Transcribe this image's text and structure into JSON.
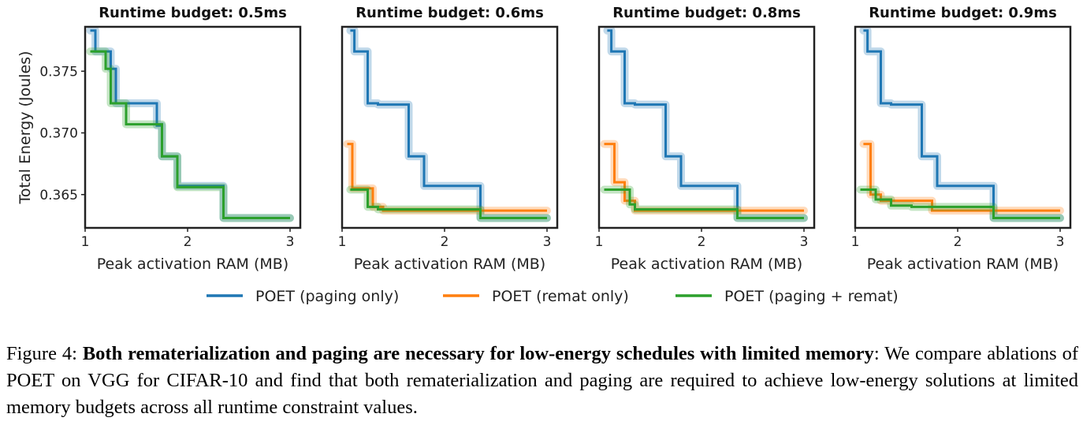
{
  "colors": {
    "paging_only": "#1f77b4",
    "remat_only": "#ff7f0e",
    "paging_remat": "#2ca02c"
  },
  "legend": [
    {
      "key": "paging_only",
      "label": "POET (paging only)"
    },
    {
      "key": "remat_only",
      "label": "POET (remat only)"
    },
    {
      "key": "paging_remat",
      "label": "POET (paging + remat)"
    }
  ],
  "caption": {
    "prefix": "Figure 4: ",
    "bold": "Both rematerialization and paging are necessary for low-energy schedules with limited memory",
    "rest": ": We compare ablations of POET on VGG for CIFAR-10 and find that both rematerialization and paging are required to achieve low-energy solutions at limited memory budgets across all runtime constraint values."
  },
  "chart_data": [
    {
      "type": "line",
      "title": "Runtime budget: 0.5ms",
      "xlabel": "Peak activation RAM (MB)",
      "ylabel": "Total Energy (Joules)",
      "xlim": [
        1.0,
        3.1
      ],
      "ylim": [
        0.3623,
        0.3786
      ],
      "xticks": [
        "1",
        "2",
        "3"
      ],
      "yticks": [
        "0.365",
        "0.370",
        "0.375"
      ],
      "series": [
        {
          "name": "POET (paging only)",
          "key": "paging_only",
          "x": [
            1.05,
            1.1,
            1.1,
            1.25,
            1.25,
            1.3,
            1.3,
            1.7,
            1.7,
            1.75,
            1.75,
            1.9,
            1.9,
            2.35,
            2.35,
            3.0
          ],
          "y": [
            0.3783,
            0.3783,
            0.3766,
            0.3766,
            0.3752,
            0.3752,
            0.3724,
            0.3724,
            0.3706,
            0.3706,
            0.3681,
            0.3681,
            0.3657,
            0.3657,
            0.3631,
            0.3631
          ]
        },
        {
          "name": "POET (remat only)",
          "key": "remat_only",
          "x": [],
          "y": []
        },
        {
          "name": "POET (paging + remat)",
          "key": "paging_remat",
          "x": [
            1.05,
            1.2,
            1.2,
            1.25,
            1.25,
            1.4,
            1.4,
            1.75,
            1.75,
            1.9,
            1.9,
            2.35,
            2.35,
            3.0
          ],
          "y": [
            0.3766,
            0.3766,
            0.3752,
            0.3752,
            0.3724,
            0.3724,
            0.3707,
            0.3707,
            0.3681,
            0.3681,
            0.3656,
            0.3656,
            0.3631,
            0.3631
          ]
        }
      ]
    },
    {
      "type": "line",
      "title": "Runtime budget: 0.6ms",
      "xlabel": "Peak activation RAM (MB)",
      "xlim": [
        1.0,
        3.1
      ],
      "ylim": [
        0.3623,
        0.3786
      ],
      "xticks": [
        "1",
        "2",
        "3"
      ],
      "series": [
        {
          "name": "POET (paging only)",
          "key": "paging_only",
          "x": [
            1.08,
            1.12,
            1.12,
            1.25,
            1.25,
            1.35,
            1.35,
            1.65,
            1.65,
            1.8,
            1.8,
            2.35,
            2.35,
            3.0
          ],
          "y": [
            0.3783,
            0.3783,
            0.3766,
            0.3766,
            0.3724,
            0.3724,
            0.3723,
            0.3723,
            0.3681,
            0.3681,
            0.3657,
            0.3657,
            0.3631,
            0.3631
          ]
        },
        {
          "name": "POET (remat only)",
          "key": "remat_only",
          "x": [
            1.05,
            1.1,
            1.1,
            1.3,
            1.3,
            1.4,
            1.4,
            2.1,
            2.1,
            3.0
          ],
          "y": [
            0.3691,
            0.3691,
            0.3655,
            0.3655,
            0.364,
            0.364,
            0.3637,
            0.3637,
            0.3637,
            0.3637
          ]
        },
        {
          "name": "POET (paging + remat)",
          "key": "paging_remat",
          "x": [
            1.08,
            1.25,
            1.25,
            1.35,
            1.35,
            2.35,
            2.35,
            3.0
          ],
          "y": [
            0.3654,
            0.3654,
            0.364,
            0.364,
            0.3638,
            0.3638,
            0.3631,
            0.3631
          ]
        }
      ]
    },
    {
      "type": "line",
      "title": "Runtime budget: 0.8ms",
      "xlabel": "Peak activation RAM (MB)",
      "xlim": [
        1.0,
        3.1
      ],
      "ylim": [
        0.3623,
        0.3786
      ],
      "xticks": [
        "1",
        "2",
        "3"
      ],
      "series": [
        {
          "name": "POET (paging only)",
          "key": "paging_only",
          "x": [
            1.08,
            1.12,
            1.12,
            1.25,
            1.25,
            1.35,
            1.35,
            1.65,
            1.65,
            1.8,
            1.8,
            2.35,
            2.35,
            3.0
          ],
          "y": [
            0.3783,
            0.3783,
            0.3766,
            0.3766,
            0.3724,
            0.3724,
            0.3723,
            0.3723,
            0.3681,
            0.3681,
            0.3657,
            0.3657,
            0.3631,
            0.3631
          ]
        },
        {
          "name": "POET (remat only)",
          "key": "remat_only",
          "x": [
            1.05,
            1.15,
            1.15,
            1.25,
            1.25,
            1.35,
            1.35,
            2.1,
            2.1,
            3.0
          ],
          "y": [
            0.3691,
            0.3691,
            0.366,
            0.366,
            0.3645,
            0.3645,
            0.3637,
            0.3637,
            0.3637,
            0.3637
          ]
        },
        {
          "name": "POET (paging + remat)",
          "key": "paging_remat",
          "x": [
            1.05,
            1.3,
            1.3,
            1.35,
            1.35,
            2.35,
            2.35,
            3.0
          ],
          "y": [
            0.3654,
            0.3654,
            0.3642,
            0.3642,
            0.3638,
            0.3638,
            0.3631,
            0.3631
          ]
        }
      ]
    },
    {
      "type": "line",
      "title": "Runtime budget: 0.9ms",
      "xlabel": "Peak activation RAM (MB)",
      "xlim": [
        1.0,
        3.1
      ],
      "ylim": [
        0.3623,
        0.3786
      ],
      "xticks": [
        "1",
        "2",
        "3"
      ],
      "series": [
        {
          "name": "POET (paging only)",
          "key": "paging_only",
          "x": [
            1.08,
            1.12,
            1.12,
            1.25,
            1.25,
            1.35,
            1.35,
            1.65,
            1.65,
            1.8,
            1.8,
            2.35,
            2.35,
            3.0
          ],
          "y": [
            0.3783,
            0.3783,
            0.3766,
            0.3766,
            0.3724,
            0.3724,
            0.3723,
            0.3723,
            0.3681,
            0.3681,
            0.3657,
            0.3657,
            0.3631,
            0.3631
          ]
        },
        {
          "name": "POET (remat only)",
          "key": "remat_only",
          "x": [
            1.08,
            1.15,
            1.15,
            1.25,
            1.25,
            1.75,
            1.75,
            3.0
          ],
          "y": [
            0.3691,
            0.3691,
            0.365,
            0.365,
            0.3645,
            0.3645,
            0.3637,
            0.3637
          ]
        },
        {
          "name": "POET (paging + remat)",
          "key": "paging_remat",
          "x": [
            1.05,
            1.2,
            1.2,
            1.35,
            1.35,
            1.55,
            1.55,
            2.35,
            2.35,
            3.0
          ],
          "y": [
            0.3654,
            0.3654,
            0.3646,
            0.3646,
            0.3641,
            0.3641,
            0.364,
            0.364,
            0.3631,
            0.3631
          ]
        }
      ]
    }
  ]
}
